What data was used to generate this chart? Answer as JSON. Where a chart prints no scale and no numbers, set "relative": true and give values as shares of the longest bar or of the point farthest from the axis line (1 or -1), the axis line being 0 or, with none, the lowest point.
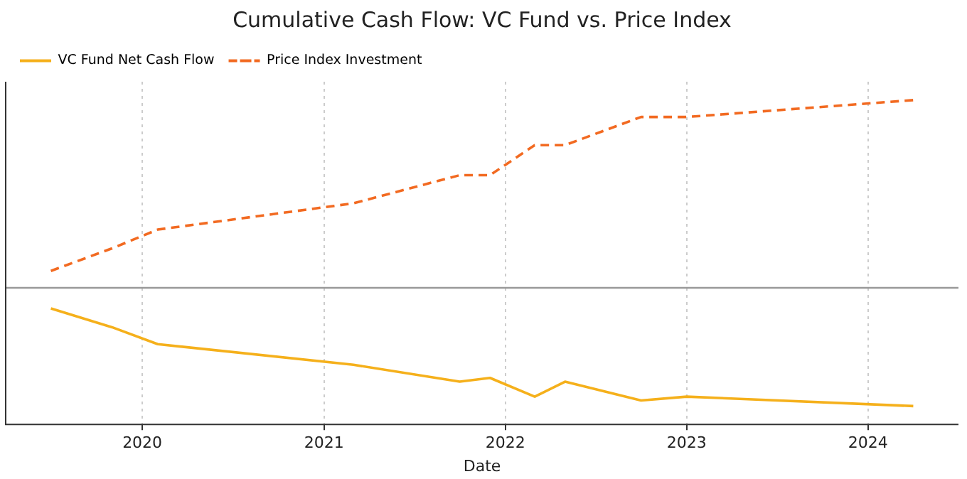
{
  "chart_data": {
    "type": "line",
    "title": "Cumulative Cash Flow: VC Fund vs. Price Index",
    "xlabel": "Date",
    "relative": true,
    "xlim": [
      "2019-04",
      "2024-07"
    ],
    "xticks": [
      "2020",
      "2021",
      "2022",
      "2023",
      "2024"
    ],
    "series": [
      {
        "name": "VC Fund Net Cash Flow",
        "color": "#f5b01b",
        "line_style": "solid",
        "x": [
          "2019-07",
          "2019-11",
          "2020-02",
          "2021-03",
          "2021-10",
          "2021-12",
          "2022-03",
          "2022-05",
          "2022-10",
          "2023-01",
          "2024-04"
        ],
        "values": [
          -0.11,
          -0.21,
          -0.3,
          -0.41,
          -0.5,
          -0.48,
          -0.58,
          -0.5,
          -0.6,
          -0.58,
          -0.63
        ]
      },
      {
        "name": "Price Index Investment",
        "color": "#f26a21",
        "line_style": "dashed",
        "x": [
          "2019-07",
          "2019-11",
          "2020-02",
          "2021-03",
          "2021-10",
          "2021-12",
          "2022-03",
          "2022-05",
          "2022-10",
          "2023-01",
          "2024-04"
        ],
        "values": [
          0.09,
          0.21,
          0.31,
          0.45,
          0.6,
          0.6,
          0.76,
          0.76,
          0.91,
          0.91,
          1
        ]
      }
    ],
    "grid": "x",
    "legend": "top left",
    "marker": "none"
  }
}
